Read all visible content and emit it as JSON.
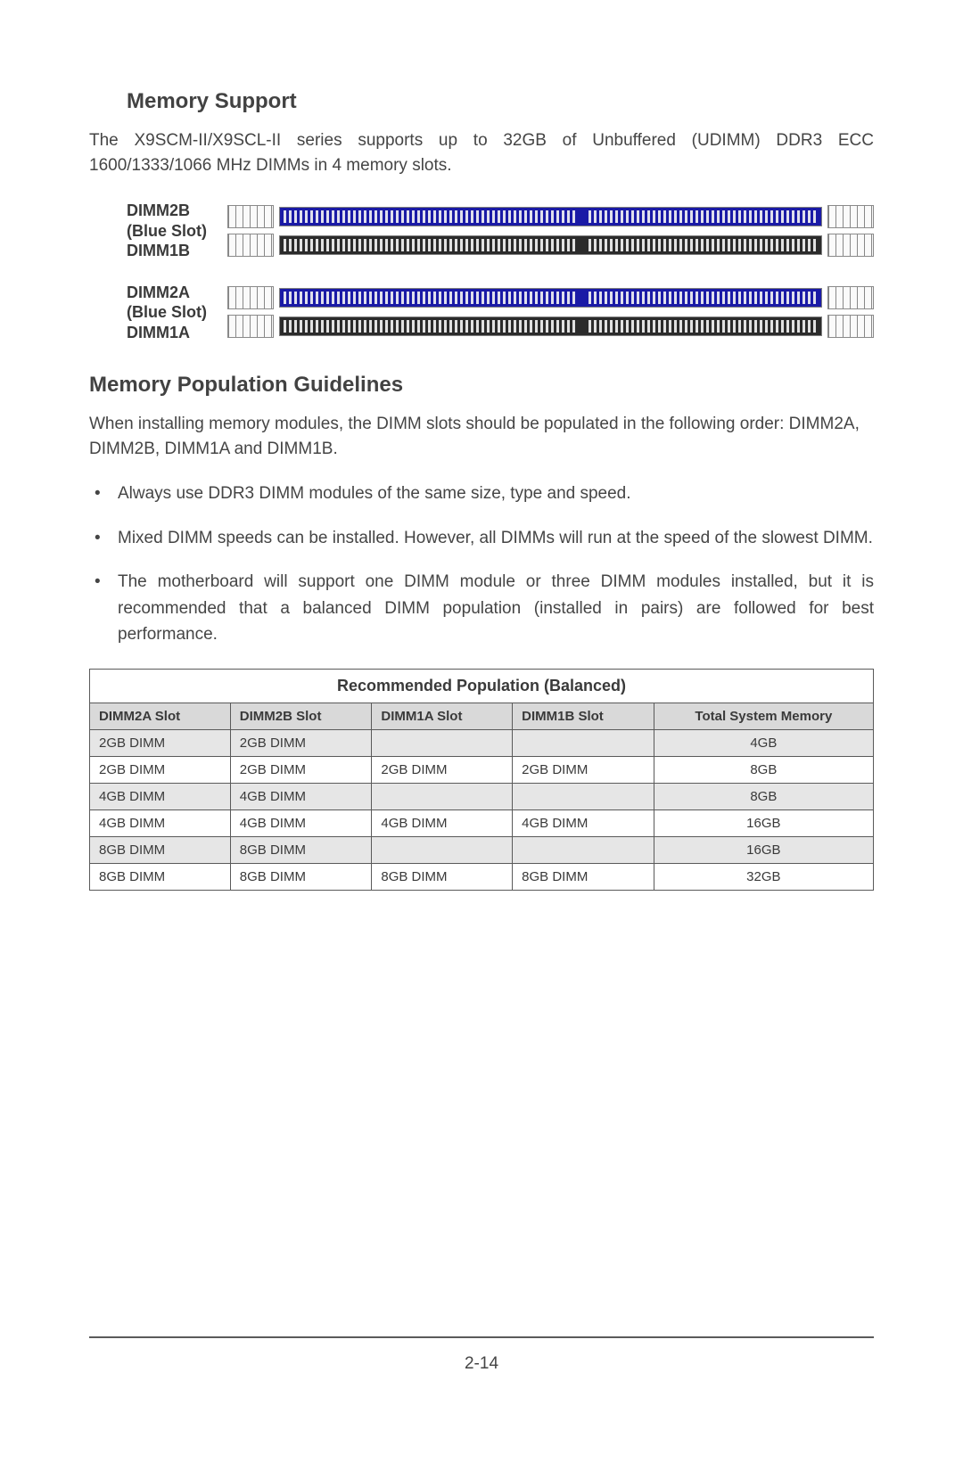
{
  "memory_support": {
    "heading": "Memory Support",
    "paragraph": "The X9SCM-II/X9SCL-II series supports up to 32GB of Unbuffered (UDIMM) DDR3 ECC 1600/1333/1066 MHz DIMMs in 4 memory slots."
  },
  "dimm_diagram": {
    "group1": {
      "top_label": "DIMM2B",
      "mid_label": "(Blue Slot)",
      "bottom_label": "DIMM1B"
    },
    "group2": {
      "top_label": "DIMM2A",
      "mid_label": "(Blue Slot)",
      "bottom_label": "DIMM1A"
    },
    "colors": {
      "blue_slot": "#1a1aa6",
      "black_slot": "#2b2b2b",
      "edge_border": "#8a8a8a"
    }
  },
  "population": {
    "heading": "Memory Population Guidelines",
    "intro": "When installing memory modules, the DIMM slots should be populated in the following order: DIMM2A, DIMM2B, DIMM1A and DIMM1B.",
    "bullets": [
      "Always use DDR3 DIMM modules of the same size, type and speed.",
      "Mixed DIMM speeds can be installed. However, all DIMMs will run at the speed of the slowest DIMM.",
      "The motherboard will support one DIMM module or three DIMM modules installed, but it is recommended that a balanced DIMM population (installed in pairs) are followed for best performance."
    ]
  },
  "table": {
    "title": "Recommended Population (Balanced)",
    "columns": [
      "DIMM2A Slot",
      "DIMM2B Slot",
      "DIMM1A Slot",
      "DIMM1B Slot",
      "Total System Memory"
    ],
    "rows": [
      {
        "cells": [
          "2GB DIMM",
          "2GB DIMM",
          "",
          "",
          "4GB"
        ],
        "shade": true
      },
      {
        "cells": [
          "2GB DIMM",
          "2GB DIMM",
          "2GB DIMM",
          "2GB DIMM",
          "8GB"
        ],
        "shade": false
      },
      {
        "cells": [
          "4GB DIMM",
          "4GB DIMM",
          "",
          "",
          "8GB"
        ],
        "shade": true
      },
      {
        "cells": [
          "4GB DIMM",
          "4GB DIMM",
          "4GB DIMM",
          "4GB DIMM",
          "16GB"
        ],
        "shade": false
      },
      {
        "cells": [
          "8GB DIMM",
          "8GB DIMM",
          "",
          "",
          "16GB"
        ],
        "shade": true
      },
      {
        "cells": [
          "8GB DIMM",
          "8GB DIMM",
          "8GB DIMM",
          "8GB DIMM",
          "32GB"
        ],
        "shade": false
      }
    ],
    "styling": {
      "border_color": "#5a5a5a",
      "header_bg": "#d9d9d9",
      "shade_bg": "#e6e6e6",
      "font_size_header": 15,
      "font_size_cell": 15,
      "font_size_title": 18
    }
  },
  "footer": {
    "page_number": "2-14"
  }
}
